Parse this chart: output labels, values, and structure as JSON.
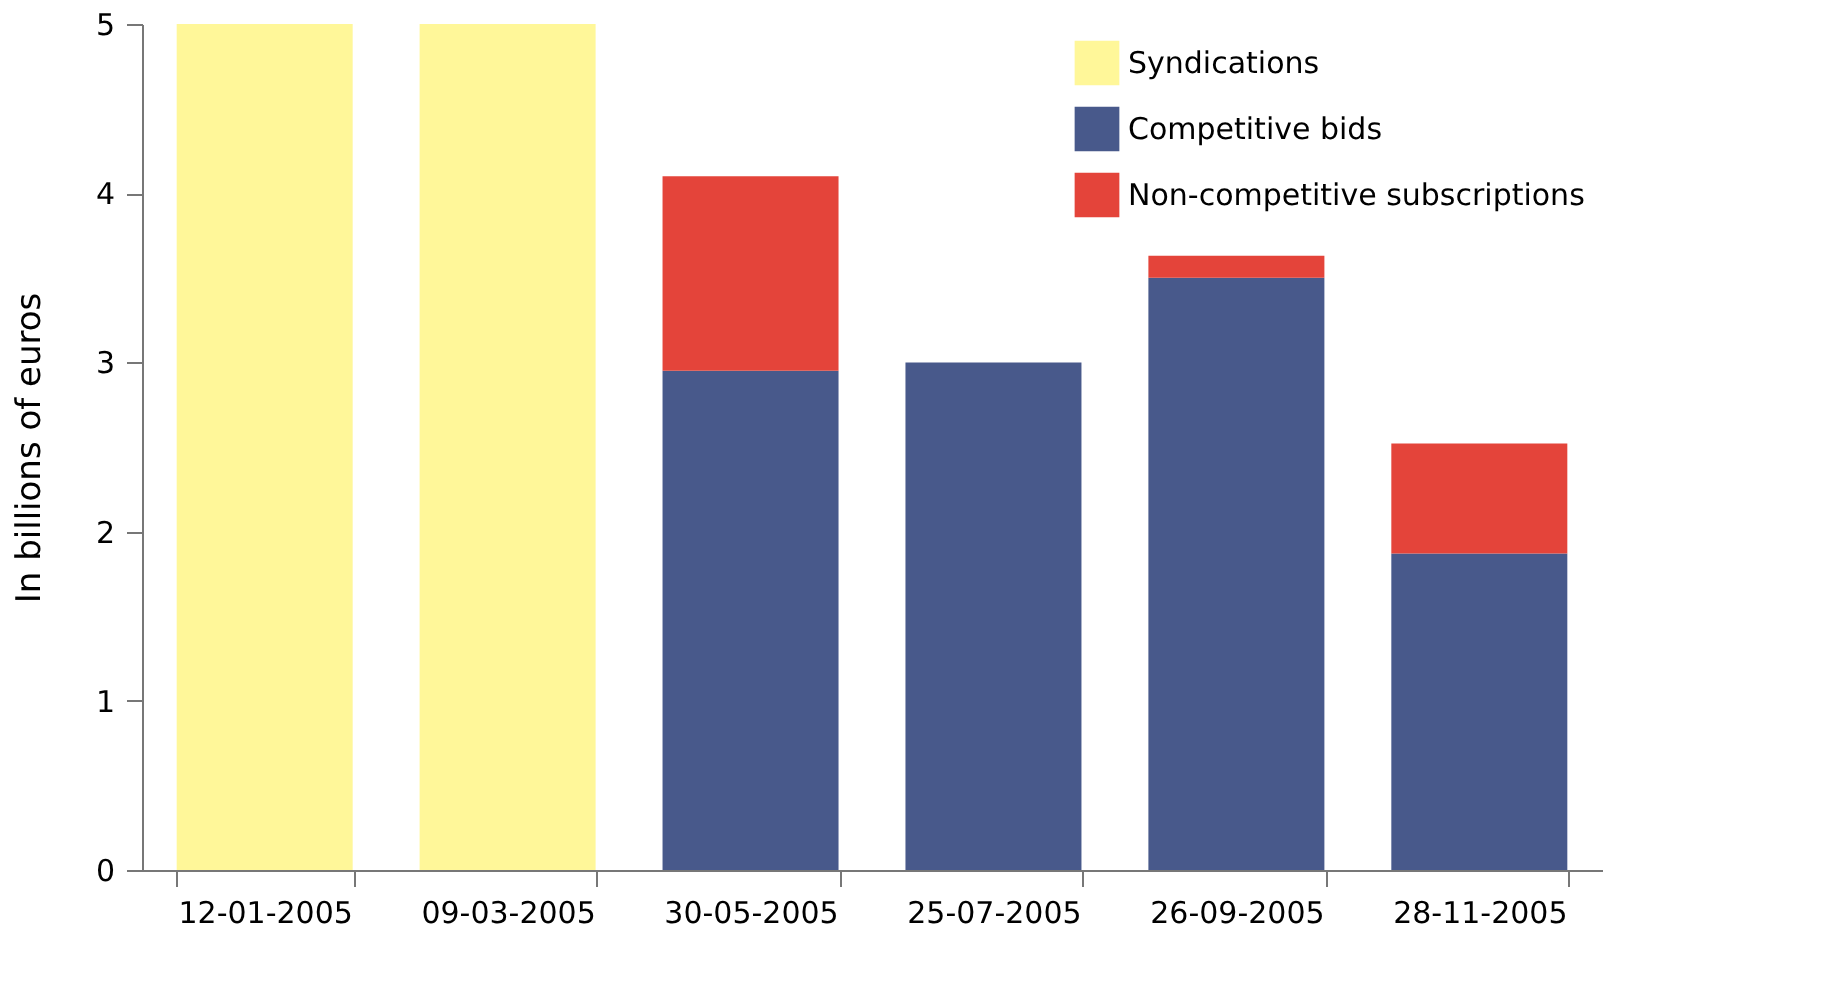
{
  "chart_data": {
    "type": "bar",
    "stacked": true,
    "ylabel": "In billions of euros",
    "categories": [
      "12-01-2005",
      "09-03-2005",
      "30-05-2005",
      "25-07-2005",
      "26-09-2005",
      "28-11-2005"
    ],
    "series": [
      {
        "name": "Syndications",
        "color": "#fff799",
        "values": [
          5,
          5,
          null,
          null,
          null,
          null
        ]
      },
      {
        "name": "Competitive bids",
        "color": "#48598b",
        "values": [
          null,
          null,
          2.95,
          3.0,
          3.5,
          1.87
        ]
      },
      {
        "name": "Non-competitive subscriptions",
        "color": "#e4443a",
        "values": [
          null,
          null,
          1.15,
          null,
          0.13,
          0.65
        ]
      }
    ],
    "ylim": [
      0,
      5
    ],
    "yticks": [
      0,
      1,
      2,
      3,
      4,
      5
    ],
    "grid": false,
    "legend": "top right"
  }
}
